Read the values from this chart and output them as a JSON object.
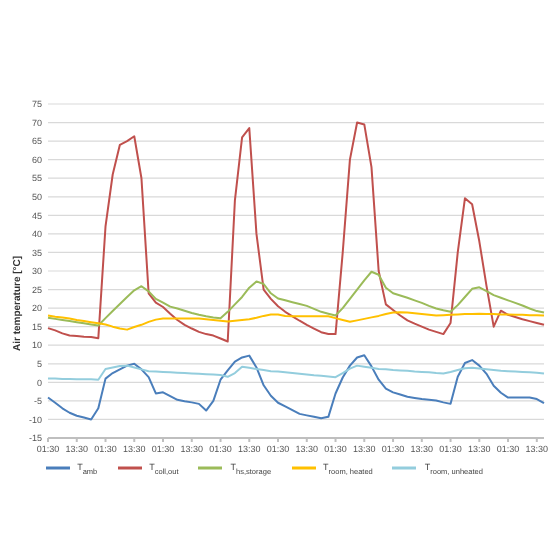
{
  "chart_data": {
    "type": "line",
    "ylabel": "Air temperature [°C]",
    "ylim": [
      -15,
      75
    ],
    "yticks": [
      -15,
      -10,
      -5,
      0,
      5,
      10,
      15,
      20,
      25,
      30,
      35,
      40,
      45,
      50,
      55,
      60,
      65,
      70,
      75
    ],
    "categories": [
      "01:30",
      null,
      null,
      null,
      "13:30",
      null,
      null,
      null,
      "01:30",
      null,
      null,
      null,
      "13:30",
      null,
      null,
      null,
      "01:30",
      null,
      null,
      null,
      "13:30",
      null,
      null,
      null,
      "01:30",
      null,
      null,
      null,
      "13:30",
      null,
      null,
      null,
      "01:30",
      null,
      null,
      null,
      "13:30",
      null,
      null,
      null,
      "01:30",
      null,
      null,
      null,
      "13:30",
      null,
      null,
      null,
      "01:30",
      null,
      null,
      null,
      "13:30",
      null,
      null,
      null,
      "01:30",
      null,
      null,
      null,
      "13:30",
      null,
      null,
      null,
      "01:30",
      null,
      null,
      null,
      "13:30",
      null
    ],
    "grid": "y",
    "legend": "bottom",
    "marker": "none",
    "line_style": "solid",
    "series": [
      {
        "name": "T$_{amb}$",
        "color": "#4a7ebb",
        "values": [
          -4.1,
          -5.5,
          -7,
          -8.2,
          -9,
          -9.5,
          -10,
          -7,
          1,
          2.5,
          3.5,
          4.5,
          5,
          3.5,
          1.4,
          -3,
          -2.7,
          -3.7,
          -4.7,
          -5.1,
          -5.4,
          -5.8,
          -7.6,
          -5,
          0.7,
          3.2,
          5.6,
          6.7,
          7.2,
          4,
          -0.8,
          -3.6,
          -5.5,
          -6.5,
          -7.5,
          -8.5,
          -8.9,
          -9.3,
          -9.7,
          -9.3,
          -3,
          1.3,
          4.5,
          6.7,
          7.3,
          4.3,
          0.7,
          -1.7,
          -2.7,
          -3.3,
          -3.9,
          -4.2,
          -4.5,
          -4.7,
          -4.9,
          -5.4,
          -5.8,
          1.5,
          5.2,
          6,
          4.5,
          2.3,
          -0.9,
          -2.8,
          -4.1,
          -4.1,
          -4.1,
          -4.1,
          -4.5,
          -5.6
        ]
      },
      {
        "name": "T$_{coll,out}$",
        "color": "#c0504d",
        "values": [
          14.6,
          14,
          13.2,
          12.6,
          12.5,
          12.3,
          12.2,
          11.9,
          42,
          56,
          64,
          65,
          66.3,
          55,
          24,
          21.5,
          20.3,
          18.5,
          16.8,
          15.5,
          14.5,
          13.6,
          13,
          12.6,
          11.8,
          11,
          49,
          66,
          68.5,
          40,
          25,
          22.5,
          20.5,
          19,
          17.8,
          16.6,
          15.5,
          14.5,
          13.5,
          13,
          13,
          35,
          60,
          70,
          69.5,
          58,
          30,
          21,
          19.5,
          18,
          16.7,
          15.8,
          15,
          14.2,
          13.6,
          13,
          16,
          35,
          49.6,
          48,
          38,
          26,
          15,
          19.3,
          18.2,
          17.6,
          17,
          16.5,
          16,
          15.5
        ]
      },
      {
        "name": "T$_{hs,storage}$",
        "color": "#9bbb59",
        "values": [
          17.4,
          17.1,
          16.8,
          16.5,
          16.2,
          15.9,
          15.6,
          15.3,
          17.3,
          19.2,
          21.1,
          23,
          24.8,
          25.9,
          24.5,
          22.5,
          21.5,
          20.4,
          19.9,
          19.3,
          18.7,
          18.2,
          17.8,
          17.5,
          17.3,
          19,
          21,
          23,
          25.5,
          27.2,
          26.5,
          24,
          22.6,
          22.1,
          21.6,
          21.1,
          20.6,
          19.8,
          19,
          18.5,
          18,
          20,
          22.5,
          25,
          27.5,
          29.8,
          29,
          25.5,
          24,
          23.4,
          22.8,
          22.1,
          21.4,
          20.6,
          19.9,
          19.4,
          19,
          20.8,
          23,
          25.2,
          25.6,
          24.6,
          23.5,
          22.8,
          22.1,
          21.4,
          20.7,
          19.9,
          19.2,
          18.8
        ]
      },
      {
        "name": "T$_{room, heated}$",
        "color": "#ffc000",
        "values": [
          18,
          17.7,
          17.5,
          17.2,
          16.8,
          16.5,
          16.2,
          15.9,
          15.6,
          15,
          14.5,
          14.2,
          14.9,
          15.5,
          16.3,
          16.9,
          17.2,
          17.2,
          17.2,
          17.2,
          17.2,
          17.2,
          17,
          16.8,
          16.6,
          16.4,
          16.6,
          16.8,
          17,
          17.4,
          17.9,
          18.3,
          18.3,
          17.9,
          17.8,
          17.8,
          17.8,
          17.8,
          17.8,
          17.8,
          17.3,
          16.8,
          16.3,
          16.7,
          17.1,
          17.5,
          17.9,
          18.4,
          18.8,
          18.9,
          18.8,
          18.6,
          18.4,
          18.2,
          18,
          18.1,
          18.2,
          18.3,
          18.4,
          18.4,
          18.5,
          18.4,
          18.4,
          18.3,
          18.3,
          18.2,
          18.2,
          18.1,
          18.1,
          18
        ]
      },
      {
        "name": "T$_{room, unheated}$",
        "color": "#93cddd",
        "values": [
          1,
          1,
          0.9,
          0.9,
          0.8,
          0.8,
          0.8,
          0.7,
          3.6,
          4,
          4.4,
          4.5,
          4,
          3.5,
          3,
          2.9,
          2.8,
          2.7,
          2.6,
          2.5,
          2.4,
          2.3,
          2.2,
          2.1,
          2,
          1.5,
          2.5,
          4.2,
          3.9,
          3.6,
          3.3,
          3,
          2.9,
          2.7,
          2.5,
          2.3,
          2.1,
          1.9,
          1.8,
          1.6,
          1.4,
          2.5,
          3.7,
          4.5,
          4.2,
          3.9,
          3.6,
          3.5,
          3.3,
          3.2,
          3.1,
          2.9,
          2.8,
          2.7,
          2.5,
          2.4,
          2.8,
          3.3,
          3.8,
          3.9,
          3.7,
          3.5,
          3.3,
          3.1,
          3,
          2.9,
          2.8,
          2.7,
          2.6,
          2.4
        ]
      }
    ]
  }
}
